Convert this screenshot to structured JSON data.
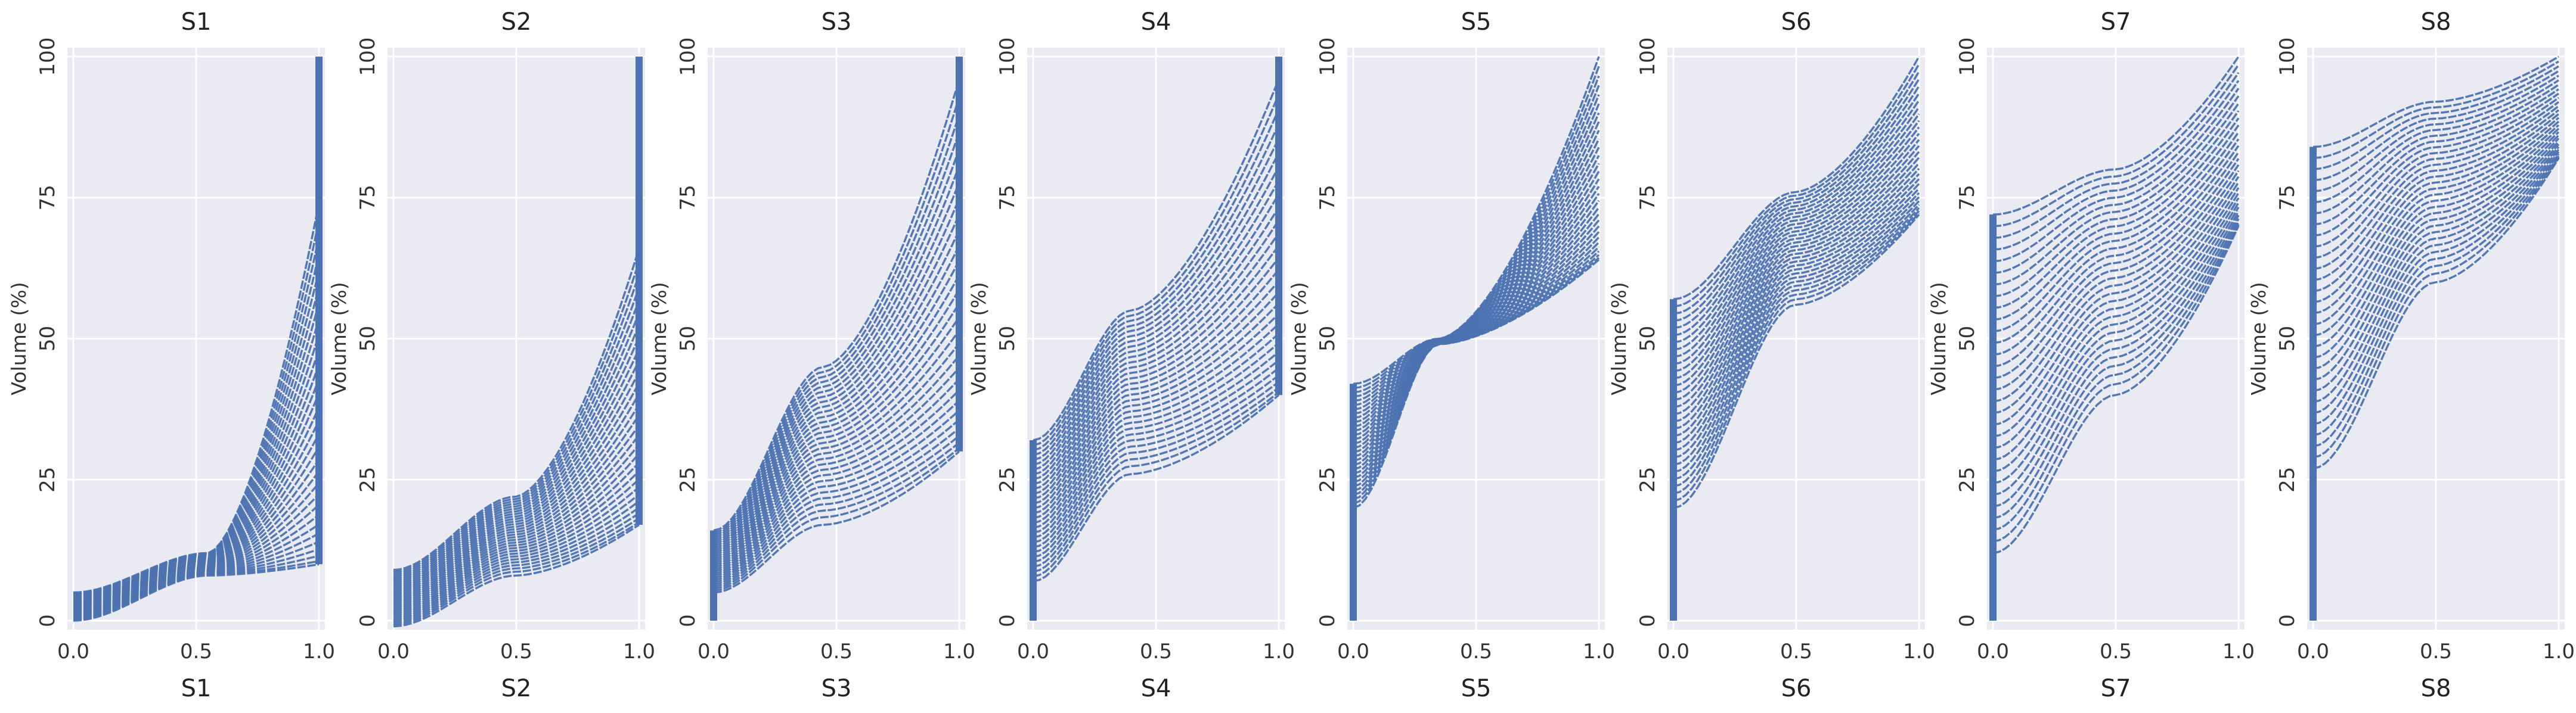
{
  "colors": {
    "series": "#4c72b0",
    "panel_background": "#eaeaf2",
    "grid": "#ffffff"
  },
  "chart_data": [
    {
      "type": "line",
      "title": "S1",
      "xlabel": "S1",
      "ylabel": "Volume (%)",
      "xlim": [
        0,
        1
      ],
      "ylim": [
        0,
        100
      ],
      "grid": true,
      "xticks": [
        "0.0",
        "0.5",
        "1.0"
      ],
      "yticks": [
        "0",
        "25",
        "50",
        "75",
        "100"
      ],
      "curves": {
        "start_low": 0,
        "start_high": 5,
        "knee_x": 0.55,
        "knee_low": 8,
        "knee_high": 12,
        "end_low": 10,
        "end_high": 74,
        "count": 30,
        "vertical_at": 1.0,
        "vertical_range": [
          10,
          100
        ]
      }
    },
    {
      "type": "line",
      "title": "S2",
      "xlabel": "S2",
      "ylabel": "Volume (%)",
      "xlim": [
        0,
        1
      ],
      "ylim": [
        0,
        100
      ],
      "grid": true,
      "xticks": [
        "0.0",
        "0.5",
        "1.0"
      ],
      "yticks": [
        "0",
        "25",
        "50",
        "75",
        "100"
      ],
      "curves": {
        "start_low": -1,
        "start_high": 9,
        "knee_x": 0.5,
        "knee_low": 8,
        "knee_high": 22,
        "end_low": 17,
        "end_high": 66,
        "count": 30,
        "vertical_at": 1.0,
        "vertical_range": [
          17,
          100
        ]
      }
    },
    {
      "type": "line",
      "title": "S3",
      "xlabel": "S3",
      "ylabel": "Volume (%)",
      "xlim": [
        0,
        1
      ],
      "ylim": [
        0,
        100
      ],
      "grid": true,
      "xticks": [
        "0.0",
        "0.5",
        "1.0"
      ],
      "yticks": [
        "0",
        "25",
        "50",
        "75",
        "100"
      ],
      "curves": {
        "start_low": 5,
        "start_high": 16,
        "knee_x": 0.45,
        "knee_low": 17,
        "knee_high": 45,
        "end_low": 30,
        "end_high": 96,
        "count": 30,
        "vertical_at": 1.0,
        "vertical_range": [
          30,
          100
        ],
        "vertical_at_start": 0.0,
        "vertical_start_range": [
          0,
          16
        ]
      }
    },
    {
      "type": "line",
      "title": "S4",
      "xlabel": "S4",
      "ylabel": "Volume (%)",
      "xlim": [
        0,
        1
      ],
      "ylim": [
        0,
        100
      ],
      "grid": true,
      "xticks": [
        "0.0",
        "0.5",
        "1.0"
      ],
      "yticks": [
        "0",
        "25",
        "50",
        "75",
        "100"
      ],
      "curves": {
        "start_low": 7,
        "start_high": 32,
        "knee_x": 0.4,
        "knee_low": 26,
        "knee_high": 55,
        "end_low": 40,
        "end_high": 96,
        "count": 30,
        "vertical_at": 1.0,
        "vertical_range": [
          40,
          100
        ],
        "vertical_at_start": 0.0,
        "vertical_start_range": [
          0,
          32
        ]
      }
    },
    {
      "type": "line",
      "title": "S5",
      "xlabel": "S5",
      "ylabel": "Volume (%)",
      "xlim": [
        0,
        1
      ],
      "ylim": [
        0,
        100
      ],
      "grid": true,
      "xticks": [
        "0.0",
        "0.5",
        "1.0"
      ],
      "yticks": [
        "0",
        "25",
        "50",
        "75",
        "100"
      ],
      "curves": {
        "start_low": 20,
        "start_high": 42,
        "knee_x": 0.35,
        "knee_low": 49,
        "knee_high": 50,
        "end_low": 64,
        "end_high": 100,
        "count": 30,
        "vertical_at_start": 0.0,
        "vertical_start_range": [
          0,
          42
        ]
      }
    },
    {
      "type": "line",
      "title": "S6",
      "xlabel": "S6",
      "ylabel": "Volume (%)",
      "xlim": [
        0,
        1
      ],
      "ylim": [
        0,
        100
      ],
      "grid": true,
      "xticks": [
        "0.0",
        "0.5",
        "1.0"
      ],
      "yticks": [
        "0",
        "25",
        "50",
        "75",
        "100"
      ],
      "curves": {
        "start_low": 20,
        "start_high": 57,
        "knee_x": 0.5,
        "knee_low": 56,
        "knee_high": 76,
        "end_low": 72,
        "end_high": 100,
        "count": 30,
        "vertical_at_start": 0.0,
        "vertical_start_range": [
          0,
          57
        ]
      }
    },
    {
      "type": "line",
      "title": "S7",
      "xlabel": "S7",
      "ylabel": "Volume (%)",
      "xlim": [
        0,
        1
      ],
      "ylim": [
        0,
        100
      ],
      "grid": true,
      "xticks": [
        "0.0",
        "0.5",
        "1.0"
      ],
      "yticks": [
        "0",
        "25",
        "50",
        "75",
        "100"
      ],
      "curves": {
        "start_low": 12,
        "start_high": 72,
        "knee_x": 0.5,
        "knee_low": 40,
        "knee_high": 80,
        "end_low": 70,
        "end_high": 100,
        "count": 30,
        "vertical_at_start": 0.0,
        "vertical_start_range": [
          0,
          72
        ]
      }
    },
    {
      "type": "line",
      "title": "S8",
      "xlabel": "S8",
      "ylabel": "Volume (%)",
      "xlim": [
        0,
        1
      ],
      "ylim": [
        0,
        100
      ],
      "grid": true,
      "xticks": [
        "0.0",
        "0.5",
        "1.0"
      ],
      "yticks": [
        "0",
        "25",
        "50",
        "75",
        "100"
      ],
      "curves": {
        "start_low": 27,
        "start_high": 84,
        "knee_x": 0.5,
        "knee_low": 60,
        "knee_high": 92,
        "end_low": 82,
        "end_high": 100,
        "count": 30,
        "vertical_at_start": 0.0,
        "vertical_start_range": [
          0,
          84
        ]
      }
    }
  ]
}
